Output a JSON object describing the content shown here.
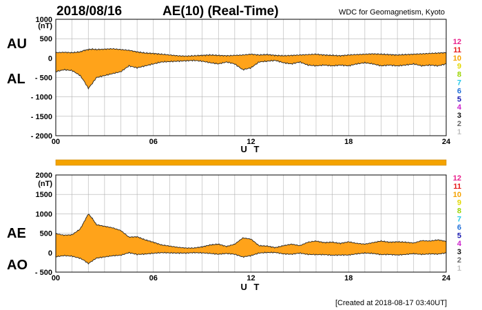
{
  "header": {
    "date": "2018/08/16",
    "title": "AE(10) (Real-Time)",
    "source": "WDC for Geomagnetism, Kyoto"
  },
  "footer": {
    "created": "[Created at 2018-08-17 03:40UT]"
  },
  "colors": {
    "band": "#ffa31a",
    "coverage_bar": "#f4a300",
    "envelope": "#222222"
  },
  "chart_data": [
    {
      "type": "area",
      "title": "AU / AL",
      "xlabel": "U T",
      "ylabel": "(nT)",
      "unit_label": "(nT)",
      "upper_label": "AU",
      "lower_label": "AL",
      "xlim": [
        0,
        24
      ],
      "ylim": [
        -2000,
        1000
      ],
      "x_ticks": [
        "00",
        "06",
        "12",
        "18",
        "24"
      ],
      "y_ticks": [
        "1000",
        "500",
        "0",
        "- 500",
        "- 1000",
        "- 1500",
        "- 2000"
      ],
      "y_tick_values": [
        1000,
        500,
        0,
        -500,
        -1000,
        -1500,
        -2000
      ],
      "x": [
        0,
        0.5,
        1,
        1.5,
        1.75,
        2,
        2.25,
        2.5,
        3,
        3.5,
        4,
        4.5,
        5,
        5.5,
        6,
        6.5,
        7,
        7.5,
        8,
        8.5,
        9,
        9.5,
        10,
        10.5,
        11,
        11.5,
        12,
        12.5,
        13,
        13.5,
        14,
        14.5,
        15,
        15.5,
        16,
        16.5,
        17,
        17.5,
        18,
        18.5,
        19,
        19.5,
        20,
        20.5,
        21,
        21.5,
        22,
        22.5,
        23,
        23.5,
        24
      ],
      "series": [
        {
          "name": "AU",
          "values": [
            140,
            150,
            140,
            160,
            200,
            220,
            230,
            220,
            230,
            240,
            220,
            200,
            160,
            130,
            120,
            100,
            80,
            60,
            50,
            60,
            70,
            80,
            70,
            60,
            70,
            80,
            100,
            80,
            90,
            70,
            60,
            70,
            80,
            90,
            100,
            80,
            70,
            60,
            80,
            90,
            100,
            110,
            100,
            90,
            80,
            90,
            100,
            110,
            120,
            130,
            140
          ]
        },
        {
          "name": "AL",
          "values": [
            -350,
            -300,
            -320,
            -450,
            -600,
            -780,
            -650,
            -500,
            -450,
            -400,
            -350,
            -200,
            -250,
            -200,
            -150,
            -100,
            -90,
            -80,
            -70,
            -60,
            -80,
            -120,
            -150,
            -100,
            -150,
            -300,
            -250,
            -100,
            -80,
            -60,
            -120,
            -150,
            -100,
            -180,
            -200,
            -180,
            -200,
            -180,
            -200,
            -150,
            -120,
            -150,
            -200,
            -180,
            -200,
            -180,
            -150,
            -200,
            -180,
            -200,
            -150
          ]
        }
      ],
      "stations": [
        "12",
        "11",
        "10",
        "9",
        "8",
        "7",
        "6",
        "5",
        "4",
        "3",
        "2",
        "1"
      ],
      "station_colors": [
        "#e8208c",
        "#e61a1a",
        "#f5a200",
        "#e2d800",
        "#9ad400",
        "#25c8e8",
        "#1f6fd9",
        "#1a1ab0",
        "#cc22cc",
        "#111111",
        "#666666",
        "#c0c0c0"
      ]
    },
    {
      "type": "area",
      "title": "AE / AO",
      "xlabel": "U T",
      "ylabel": "(nT)",
      "unit_label": "(nT)",
      "upper_label": "AE",
      "lower_label": "AO",
      "xlim": [
        0,
        24
      ],
      "ylim": [
        -500,
        2000
      ],
      "x_ticks": [
        "00",
        "06",
        "12",
        "18",
        "24"
      ],
      "y_ticks": [
        "2000",
        "1500",
        "1000",
        "500",
        "0",
        "- 500"
      ],
      "y_tick_values": [
        2000,
        1500,
        1000,
        500,
        0,
        -500
      ],
      "x": [
        0,
        0.5,
        1,
        1.5,
        1.75,
        2,
        2.25,
        2.5,
        3,
        3.5,
        4,
        4.5,
        5,
        5.5,
        6,
        6.5,
        7,
        7.5,
        8,
        8.5,
        9,
        9.5,
        10,
        10.5,
        11,
        11.5,
        12,
        12.5,
        13,
        13.5,
        14,
        14.5,
        15,
        15.5,
        16,
        16.5,
        17,
        17.5,
        18,
        18.5,
        19,
        19.5,
        20,
        20.5,
        21,
        21.5,
        22,
        22.5,
        23,
        23.5,
        24
      ],
      "series": [
        {
          "name": "AE",
          "values": [
            490,
            450,
            460,
            610,
            800,
            1000,
            880,
            720,
            680,
            640,
            570,
            400,
            410,
            330,
            270,
            200,
            170,
            140,
            120,
            120,
            150,
            200,
            220,
            160,
            220,
            380,
            350,
            180,
            170,
            130,
            180,
            220,
            180,
            270,
            300,
            260,
            270,
            240,
            280,
            240,
            220,
            260,
            300,
            270,
            280,
            270,
            250,
            310,
            300,
            330,
            290
          ]
        },
        {
          "name": "AO",
          "values": [
            -105,
            -75,
            -90,
            -145,
            -200,
            -280,
            -210,
            -140,
            -110,
            -80,
            -65,
            0,
            -45,
            -35,
            -15,
            0,
            -5,
            -10,
            -10,
            0,
            -5,
            -20,
            -40,
            -20,
            -40,
            -110,
            -75,
            -10,
            5,
            5,
            -30,
            -40,
            -10,
            -45,
            -50,
            -50,
            -65,
            -60,
            -60,
            -30,
            -10,
            -20,
            -50,
            -45,
            -60,
            -45,
            -25,
            -45,
            -30,
            -35,
            -5
          ]
        }
      ],
      "stations": [
        "12",
        "11",
        "10",
        "9",
        "8",
        "7",
        "6",
        "5",
        "4",
        "3",
        "2",
        "1"
      ],
      "station_colors": [
        "#e8208c",
        "#e61a1a",
        "#f5a200",
        "#e2d800",
        "#9ad400",
        "#25c8e8",
        "#1f6fd9",
        "#1a1ab0",
        "#cc22cc",
        "#111111",
        "#666666",
        "#c0c0c0"
      ]
    }
  ]
}
